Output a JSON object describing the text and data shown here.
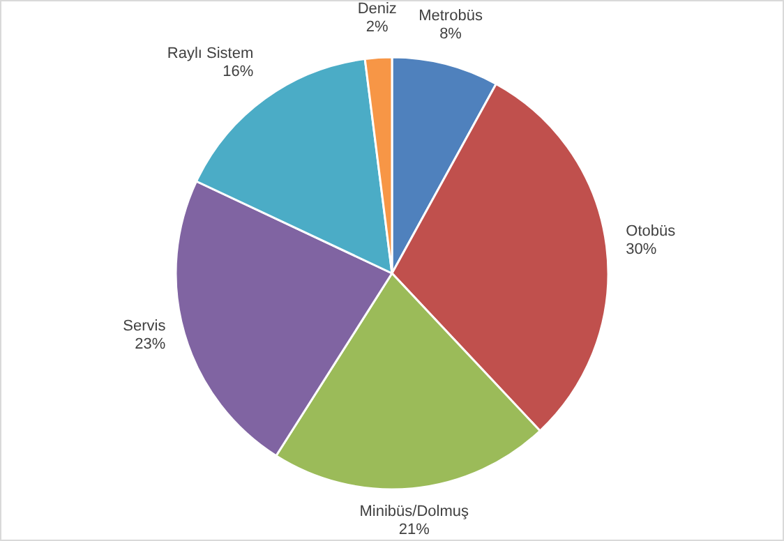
{
  "chart_data": {
    "type": "pie",
    "categories": [
      "Metrobüs",
      "Otobüs",
      "Minibüs/Dolmuş",
      "Servis",
      "Raylı Sistem",
      "Deniz"
    ],
    "values": [
      8,
      30,
      21,
      23,
      16,
      2
    ],
    "colors": [
      "#4f81bd",
      "#c0504d",
      "#9bbb59",
      "#8064a2",
      "#4bacc6",
      "#f79646"
    ],
    "value_labels": [
      "8%",
      "30%",
      "21%",
      "23%",
      "16%",
      "2%"
    ]
  }
}
